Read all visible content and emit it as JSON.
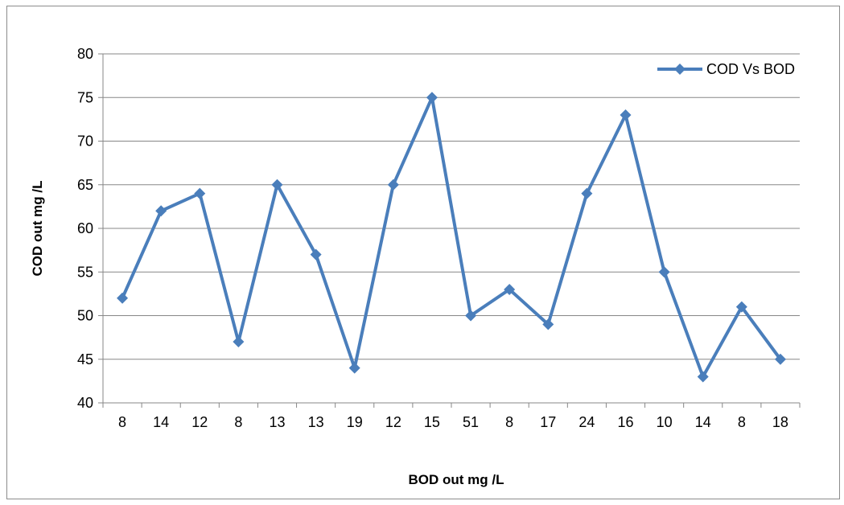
{
  "chart_data": {
    "type": "line",
    "title": "",
    "categories": [
      "8",
      "14",
      "12",
      "8",
      "13",
      "13",
      "19",
      "12",
      "15",
      "51",
      "8",
      "17",
      "24",
      "16",
      "10",
      "14",
      "8",
      "18"
    ],
    "series": [
      {
        "name": "COD Vs BOD",
        "values": [
          52,
          62,
          64,
          47,
          65,
          57,
          44,
          65,
          75,
          50,
          53,
          49,
          64,
          73,
          55,
          43,
          51,
          45
        ],
        "color": "#4a7ebb",
        "marker": "diamond"
      }
    ],
    "xlabel": "BOD out  mg /L",
    "ylabel": "COD out  mg /L",
    "ylim": [
      40,
      80
    ],
    "yticks": [
      40,
      45,
      50,
      55,
      60,
      65,
      70,
      75,
      80
    ],
    "grid": true,
    "legend": "top-right"
  }
}
